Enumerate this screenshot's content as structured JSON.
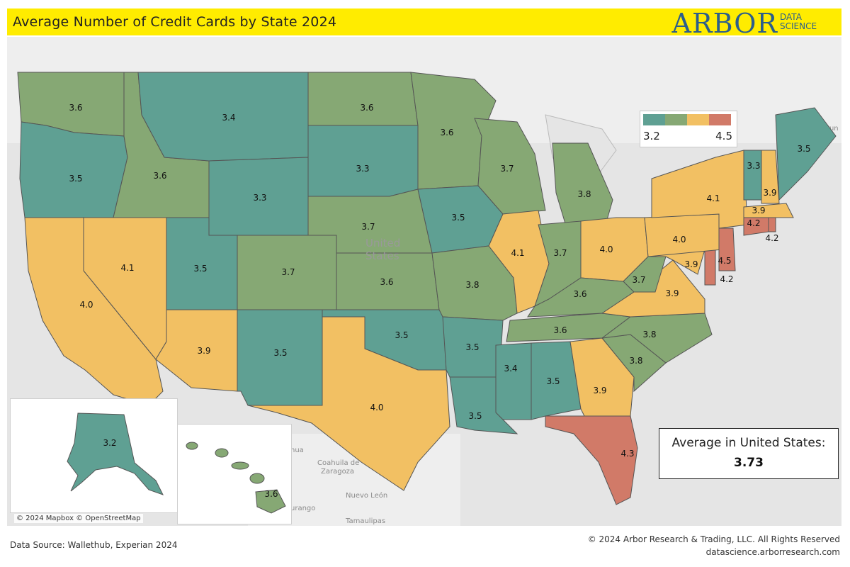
{
  "header": {
    "title": "Average Number of Credit Cards by State 2024",
    "logo_main": "ARBOR",
    "logo_sub_1": "DATA",
    "logo_sub_2": "SCIENCE"
  },
  "map": {
    "country_label_1": "United",
    "country_label_2": "States",
    "mexico_labels": [
      "Coahuila de",
      "Zaragoza",
      "Nuevo León",
      "Tamaulipas",
      "urango",
      "hua"
    ],
    "canada_label": "Brun",
    "attribution": "© 2024 Mapbox © OpenStreetMap"
  },
  "legend": {
    "min": "3.2",
    "max": "4.5",
    "colors": [
      "#5fa093",
      "#86a874",
      "#f2c063",
      "#d17a68"
    ]
  },
  "average": {
    "label": "Average in United States:",
    "value": "3.73"
  },
  "states": [
    {
      "code": "WA",
      "value": "3.6"
    },
    {
      "code": "OR",
      "value": "3.5"
    },
    {
      "code": "CA",
      "value": "4.0"
    },
    {
      "code": "NV",
      "value": "4.1"
    },
    {
      "code": "ID",
      "value": "3.6"
    },
    {
      "code": "MT",
      "value": "3.4"
    },
    {
      "code": "WY",
      "value": "3.3"
    },
    {
      "code": "UT",
      "value": "3.5"
    },
    {
      "code": "AZ",
      "value": "3.9"
    },
    {
      "code": "CO",
      "value": "3.7"
    },
    {
      "code": "NM",
      "value": "3.5"
    },
    {
      "code": "ND",
      "value": "3.6"
    },
    {
      "code": "SD",
      "value": "3.3"
    },
    {
      "code": "NE",
      "value": "3.7"
    },
    {
      "code": "KS",
      "value": "3.6"
    },
    {
      "code": "OK",
      "value": "3.5"
    },
    {
      "code": "TX",
      "value": "4.0"
    },
    {
      "code": "MN",
      "value": "3.6"
    },
    {
      "code": "IA",
      "value": "3.5"
    },
    {
      "code": "MO",
      "value": "3.8"
    },
    {
      "code": "AR",
      "value": "3.5"
    },
    {
      "code": "LA",
      "value": "3.5"
    },
    {
      "code": "WI",
      "value": "3.7"
    },
    {
      "code": "IL",
      "value": "4.1"
    },
    {
      "code": "MI",
      "value": "3.8"
    },
    {
      "code": "IN",
      "value": "3.7"
    },
    {
      "code": "OH",
      "value": "4.0"
    },
    {
      "code": "KY",
      "value": "3.6"
    },
    {
      "code": "TN",
      "value": "3.6"
    },
    {
      "code": "MS",
      "value": "3.4"
    },
    {
      "code": "AL",
      "value": "3.5"
    },
    {
      "code": "GA",
      "value": "3.9"
    },
    {
      "code": "FL",
      "value": "4.3"
    },
    {
      "code": "SC",
      "value": "3.8"
    },
    {
      "code": "NC",
      "value": "3.8"
    },
    {
      "code": "VA",
      "value": "3.9"
    },
    {
      "code": "WV",
      "value": "3.7"
    },
    {
      "code": "MD",
      "value": "3.9"
    },
    {
      "code": "DE",
      "value": "4.2"
    },
    {
      "code": "PA",
      "value": "4.0"
    },
    {
      "code": "NJ",
      "value": "4.5"
    },
    {
      "code": "NY",
      "value": "4.1"
    },
    {
      "code": "CT",
      "value": "4.2"
    },
    {
      "code": "RI",
      "value": "4.2"
    },
    {
      "code": "MA",
      "value": "3.9"
    },
    {
      "code": "VT",
      "value": "3.3"
    },
    {
      "code": "NH",
      "value": "3.9"
    },
    {
      "code": "ME",
      "value": "3.5"
    },
    {
      "code": "AK",
      "value": "3.2"
    },
    {
      "code": "HI",
      "value": "3.6"
    }
  ],
  "footer": {
    "source": "Data Source: Wallethub, Experian 2024",
    "copyright": "© 2024 Arbor Research & Trading, LLC. All Rights Reserved",
    "url": "datascience.arborresearch.com"
  }
}
